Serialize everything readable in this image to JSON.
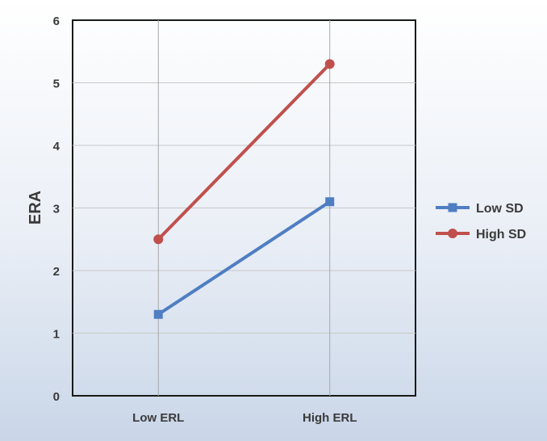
{
  "chart_data": {
    "type": "line",
    "categories": [
      "Low ERL",
      "High ERL"
    ],
    "series": [
      {
        "name": "Low SD",
        "values": [
          1.3,
          3.1
        ],
        "color": "#4f7ec2",
        "marker": "square"
      },
      {
        "name": "High SD",
        "values": [
          2.5,
          5.3
        ],
        "color": "#c0504d",
        "marker": "circle"
      }
    ],
    "title": "",
    "xlabel": "",
    "ylabel": "ERA",
    "ylim": [
      0,
      6
    ],
    "yticks": [
      "0",
      "1",
      "2",
      "3",
      "4",
      "5",
      "6"
    ],
    "grid": true,
    "legend_position": "right"
  }
}
